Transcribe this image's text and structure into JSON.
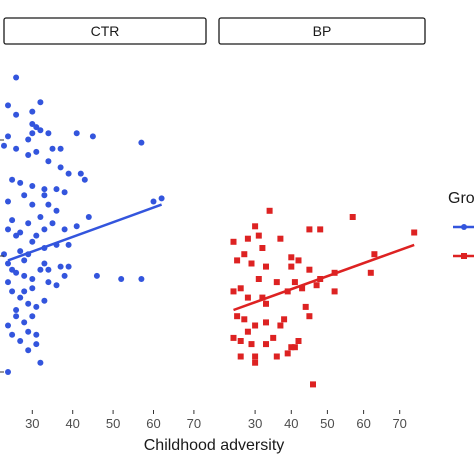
{
  "chart_data": {
    "type": "scatter",
    "xlabel": "Childhood adversity",
    "ylabel": "",
    "legend": {
      "title": "Gro",
      "placement": "right"
    },
    "colors": {
      "CTR": "#3355dd",
      "BP": "#dd2222"
    },
    "y_range": [
      0,
      100
    ],
    "panels": [
      {
        "label": "CTR",
        "x_range": [
          23,
          73
        ],
        "x_ticks": [
          "30",
          "40",
          "50",
          "60",
          "70"
        ],
        "x_tick_values": [
          30,
          40,
          50,
          60,
          70
        ],
        "marker": "circle",
        "fit": {
          "x0": 24,
          "y0": 36,
          "x1": 62,
          "y1": 54
        },
        "points": [
          [
            26,
            95
          ],
          [
            24,
            86
          ],
          [
            26,
            83
          ],
          [
            30,
            84
          ],
          [
            32,
            87
          ],
          [
            30,
            80
          ],
          [
            31,
            79
          ],
          [
            32,
            78
          ],
          [
            30,
            77
          ],
          [
            34,
            77
          ],
          [
            29,
            75
          ],
          [
            24,
            76
          ],
          [
            23,
            73
          ],
          [
            26,
            72
          ],
          [
            29,
            70
          ],
          [
            31,
            71
          ],
          [
            35,
            72
          ],
          [
            37,
            72
          ],
          [
            41,
            77
          ],
          [
            45,
            76
          ],
          [
            57,
            74
          ],
          [
            34,
            68
          ],
          [
            37,
            66
          ],
          [
            39,
            64
          ],
          [
            42,
            64
          ],
          [
            25,
            62
          ],
          [
            27,
            61
          ],
          [
            30,
            60
          ],
          [
            33,
            59
          ],
          [
            36,
            59
          ],
          [
            38,
            58
          ],
          [
            43,
            62
          ],
          [
            33,
            57
          ],
          [
            28,
            57
          ],
          [
            30,
            54
          ],
          [
            34,
            54
          ],
          [
            36,
            52
          ],
          [
            24,
            55
          ],
          [
            25,
            49
          ],
          [
            29,
            48
          ],
          [
            32,
            50
          ],
          [
            35,
            48
          ],
          [
            38,
            46
          ],
          [
            41,
            47
          ],
          [
            44,
            50
          ],
          [
            24,
            46
          ],
          [
            26,
            44
          ],
          [
            30,
            42
          ],
          [
            31,
            44
          ],
          [
            33,
            40
          ],
          [
            36,
            41
          ],
          [
            39,
            41
          ],
          [
            27,
            39
          ],
          [
            28,
            36
          ],
          [
            29,
            38
          ],
          [
            23,
            38
          ],
          [
            24,
            35
          ],
          [
            25,
            33
          ],
          [
            26,
            32
          ],
          [
            28,
            31
          ],
          [
            30,
            30
          ],
          [
            32,
            33
          ],
          [
            34,
            29
          ],
          [
            36,
            28
          ],
          [
            33,
            35
          ],
          [
            38,
            31
          ],
          [
            39,
            34
          ],
          [
            46,
            31
          ],
          [
            52,
            30
          ],
          [
            57,
            30
          ],
          [
            24,
            29
          ],
          [
            25,
            26
          ],
          [
            27,
            24
          ],
          [
            29,
            22
          ],
          [
            31,
            21
          ],
          [
            33,
            23
          ],
          [
            30,
            18
          ],
          [
            26,
            18
          ],
          [
            24,
            15
          ],
          [
            25,
            12
          ],
          [
            27,
            10
          ],
          [
            29,
            13
          ],
          [
            31,
            12
          ],
          [
            28,
            16
          ],
          [
            32,
            3
          ],
          [
            24,
            0
          ],
          [
            29,
            7
          ],
          [
            31,
            9
          ],
          [
            26,
            20
          ],
          [
            28,
            26
          ],
          [
            30,
            27
          ],
          [
            34,
            33
          ],
          [
            37,
            34
          ],
          [
            27,
            45
          ],
          [
            33,
            46
          ],
          [
            60,
            55
          ],
          [
            62,
            56
          ]
        ]
      },
      {
        "label": "BP",
        "x_range": [
          20,
          77
        ],
        "x_ticks": [
          "30",
          "40",
          "50",
          "60",
          "70"
        ],
        "x_tick_values": [
          30,
          40,
          50,
          60,
          70
        ],
        "marker": "square",
        "fit": {
          "x0": 24,
          "y0": 20,
          "x1": 74,
          "y1": 41
        },
        "points": [
          [
            34,
            52
          ],
          [
            30,
            47
          ],
          [
            57,
            50
          ],
          [
            45,
            46
          ],
          [
            48,
            46
          ],
          [
            74,
            45
          ],
          [
            24,
            42
          ],
          [
            28,
            43
          ],
          [
            31,
            44
          ],
          [
            37,
            43
          ],
          [
            32,
            40
          ],
          [
            27,
            38
          ],
          [
            25,
            36
          ],
          [
            29,
            35
          ],
          [
            33,
            34
          ],
          [
            40,
            37
          ],
          [
            42,
            36
          ],
          [
            40,
            34
          ],
          [
            45,
            33
          ],
          [
            63,
            38
          ],
          [
            31,
            30
          ],
          [
            36,
            29
          ],
          [
            41,
            29
          ],
          [
            48,
            30
          ],
          [
            52,
            32
          ],
          [
            62,
            32
          ],
          [
            24,
            26
          ],
          [
            26,
            27
          ],
          [
            28,
            24
          ],
          [
            32,
            24
          ],
          [
            39,
            26
          ],
          [
            43,
            27
          ],
          [
            47,
            28
          ],
          [
            52,
            26
          ],
          [
            44,
            21
          ],
          [
            25,
            18
          ],
          [
            27,
            17
          ],
          [
            30,
            15
          ],
          [
            33,
            16
          ],
          [
            38,
            17
          ],
          [
            45,
            18
          ],
          [
            37,
            15
          ],
          [
            24,
            11
          ],
          [
            26,
            10
          ],
          [
            28,
            13
          ],
          [
            29,
            9
          ],
          [
            33,
            9
          ],
          [
            40,
            8
          ],
          [
            30,
            5
          ],
          [
            30,
            3
          ],
          [
            36,
            5
          ],
          [
            39,
            6
          ],
          [
            41,
            8
          ],
          [
            42,
            10
          ],
          [
            33,
            22
          ],
          [
            46,
            -4
          ],
          [
            26,
            5
          ],
          [
            35,
            11
          ]
        ]
      }
    ]
  }
}
